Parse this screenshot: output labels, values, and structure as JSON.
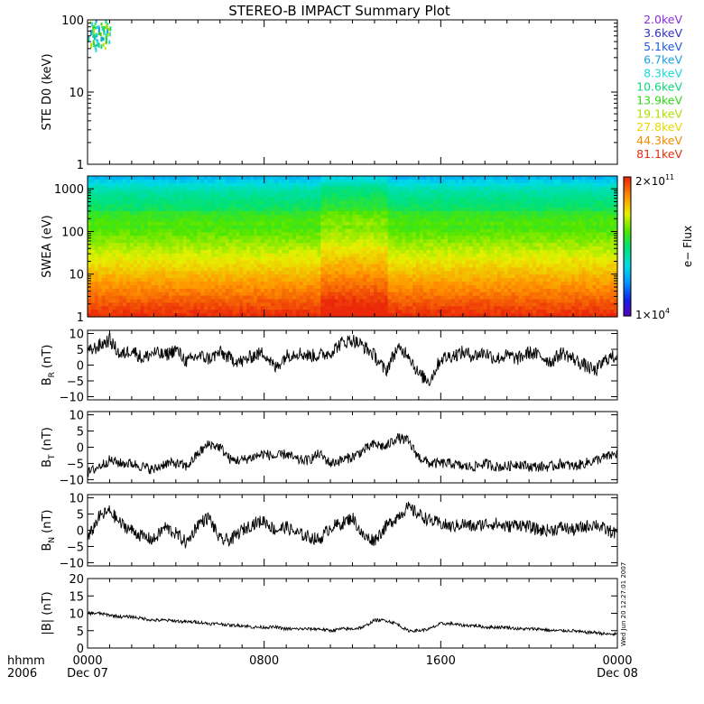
{
  "title": "STEREO-B IMPACT Summary Plot",
  "x_axis": {
    "corner_top": "hhmm",
    "corner_bottom": "2006",
    "ticks": [
      {
        "hour": 0,
        "label": "0000",
        "sub": "Dec 07"
      },
      {
        "hour": 8,
        "label": "0800",
        "sub": ""
      },
      {
        "hour": 16,
        "label": "1600",
        "sub": ""
      },
      {
        "hour": 24,
        "label": "0000",
        "sub": "Dec 08"
      }
    ],
    "range_hours": [
      0,
      24
    ]
  },
  "timestamp": "Wed Jun 20 12:27:01 2007",
  "colorbar": {
    "label": "e− Flux",
    "max_label": "2×10",
    "max_exp": "11",
    "min_label": "1×10",
    "min_exp": "4"
  },
  "energy_legend": [
    {
      "label": "2.0keV",
      "color": "#8a2be2"
    },
    {
      "label": "3.6keV",
      "color": "#3030c0"
    },
    {
      "label": "5.1keV",
      "color": "#1e5be0"
    },
    {
      "label": "6.7keV",
      "color": "#1aa0e8"
    },
    {
      "label": "8.3keV",
      "color": "#18d8d8"
    },
    {
      "label": "10.6keV",
      "color": "#10d878"
    },
    {
      "label": "13.9keV",
      "color": "#30d818"
    },
    {
      "label": "19.1keV",
      "color": "#b0e000"
    },
    {
      "label": "27.8keV",
      "color": "#e8d800"
    },
    {
      "label": "44.3keV",
      "color": "#f08c00"
    },
    {
      "label": "81.1keV",
      "color": "#e03010"
    }
  ],
  "chart_data": [
    {
      "type": "line",
      "panel": "ste",
      "ylabel": "STE D0 (keV)",
      "yscale": "log",
      "ylim": [
        1,
        100
      ],
      "yticks": [
        {
          "v": 1,
          "label": "1"
        },
        {
          "v": 10,
          "label": "10"
        },
        {
          "v": 100,
          "label": "100"
        }
      ],
      "note": "",
      "data_window_hours": [
        0,
        1.0
      ]
    },
    {
      "type": "heatmap",
      "panel": "swea",
      "ylabel": "SWEA (eV)",
      "yscale": "log",
      "ylim": [
        1,
        2000
      ],
      "yticks": [
        {
          "v": 1,
          "label": "1"
        },
        {
          "v": 10,
          "label": "10"
        },
        {
          "v": 100,
          "label": "100"
        },
        {
          "v": 1000,
          "label": "1000"
        }
      ],
      "zlim": [
        10000,
        200000000000
      ]
    },
    {
      "type": "line",
      "panel": "br",
      "ylabel": "B",
      "ylabel_sub": "R",
      "ylabel_unit": "(nT)",
      "ylim": [
        -11,
        11
      ],
      "yticks": [
        {
          "v": -10,
          "label": "−10"
        },
        {
          "v": -5,
          "label": "−5"
        },
        {
          "v": 0,
          "label": "0"
        },
        {
          "v": 5,
          "label": "5"
        },
        {
          "v": 10,
          "label": "10"
        }
      ],
      "x": [
        0,
        0.5,
        1,
        1.5,
        2,
        2.5,
        3,
        3.5,
        4,
        4.5,
        5,
        5.5,
        6,
        6.5,
        7,
        7.5,
        8,
        8.5,
        9,
        9.5,
        10,
        10.5,
        11,
        11.5,
        12,
        12.5,
        13,
        13.5,
        14,
        14.5,
        15,
        15.5,
        16,
        16.5,
        17,
        17.5,
        18,
        18.5,
        19,
        19.5,
        20,
        20.5,
        21,
        21.5,
        22,
        22.5,
        23,
        23.5,
        24
      ],
      "y": [
        4,
        6,
        8,
        3,
        5,
        2,
        4,
        3,
        5,
        1,
        3,
        2,
        4,
        2,
        1,
        3,
        4,
        -1,
        3,
        4,
        3,
        3,
        4,
        7,
        8,
        6,
        3,
        -2,
        5,
        4,
        -3,
        -5,
        2,
        3,
        4,
        3,
        4,
        2,
        3,
        2,
        4,
        3,
        1,
        4,
        2,
        0,
        -2,
        2,
        3
      ],
      "noise": 2.2
    },
    {
      "type": "line",
      "panel": "bt",
      "ylabel": "B",
      "ylabel_sub": "T",
      "ylabel_unit": "(nT)",
      "ylim": [
        -11,
        11
      ],
      "yticks": [
        {
          "v": -10,
          "label": "−10"
        },
        {
          "v": -5,
          "label": "−5"
        },
        {
          "v": 0,
          "label": "0"
        },
        {
          "v": 5,
          "label": "5"
        },
        {
          "v": 10,
          "label": "10"
        }
      ],
      "x": [
        0,
        0.5,
        1,
        1.5,
        2,
        2.5,
        3,
        3.5,
        4,
        4.5,
        5,
        5.5,
        6,
        6.5,
        7,
        7.5,
        8,
        8.5,
        9,
        9.5,
        10,
        10.5,
        11,
        11.5,
        12,
        12.5,
        13,
        13.5,
        14,
        14.5,
        15,
        15.5,
        16,
        16.5,
        17,
        17.5,
        18,
        18.5,
        19,
        19.5,
        20,
        20.5,
        21,
        21.5,
        22,
        22.5,
        23,
        23.5,
        24
      ],
      "y": [
        -8,
        -6,
        -4,
        -5,
        -5,
        -6,
        -7,
        -5,
        -5,
        -6,
        -2,
        1,
        0,
        -4,
        -4,
        -3,
        -2,
        -3,
        -2,
        -4,
        -4,
        -2,
        -5,
        -4,
        -3,
        -1,
        1,
        0,
        3,
        2,
        -3,
        -5,
        -5,
        -5,
        -6,
        -6,
        -5,
        -6,
        -6,
        -5,
        -6,
        -6,
        -6,
        -5,
        -6,
        -5,
        -4,
        -3,
        -2
      ],
      "noise": 1.6
    },
    {
      "type": "line",
      "panel": "bn",
      "ylabel": "B",
      "ylabel_sub": "N",
      "ylabel_unit": "(nT)",
      "ylim": [
        -11,
        11
      ],
      "yticks": [
        {
          "v": -10,
          "label": "−10"
        },
        {
          "v": -5,
          "label": "−5"
        },
        {
          "v": 0,
          "label": "0"
        },
        {
          "v": 5,
          "label": "5"
        },
        {
          "v": 10,
          "label": "10"
        }
      ],
      "x": [
        0,
        0.5,
        1,
        1.5,
        2,
        2.5,
        3,
        3.5,
        4,
        4.5,
        5,
        5.5,
        6,
        6.5,
        7,
        7.5,
        8,
        8.5,
        9,
        9.5,
        10,
        10.5,
        11,
        11.5,
        12,
        12.5,
        13,
        13.5,
        14,
        14.5,
        15,
        15.5,
        16,
        16.5,
        17,
        17.5,
        18,
        18.5,
        19,
        19.5,
        20,
        20.5,
        21,
        21.5,
        22,
        22.5,
        23,
        23.5,
        24
      ],
      "y": [
        -3,
        4,
        6,
        2,
        0,
        -2,
        -3,
        1,
        -1,
        -4,
        2,
        4,
        -3,
        -3,
        0,
        2,
        3,
        0,
        1,
        -1,
        -2,
        -3,
        1,
        2,
        4,
        -2,
        -3,
        1,
        4,
        7,
        5,
        3,
        2,
        1,
        2,
        1,
        2,
        2,
        1,
        2,
        1,
        0,
        0,
        1,
        0,
        1,
        2,
        0,
        -1
      ],
      "noise": 2.0
    },
    {
      "type": "line",
      "panel": "bmag",
      "ylabel": "|B| (nT)",
      "ylim": [
        0,
        20
      ],
      "yticks": [
        {
          "v": 0,
          "label": "0"
        },
        {
          "v": 5,
          "label": "5"
        },
        {
          "v": 10,
          "label": "10"
        },
        {
          "v": 15,
          "label": "15"
        },
        {
          "v": 20,
          "label": "20"
        }
      ],
      "x": [
        0,
        0.5,
        1,
        1.5,
        2,
        2.5,
        3,
        3.5,
        4,
        4.5,
        5,
        5.5,
        6,
        6.5,
        7,
        7.5,
        8,
        8.5,
        9,
        9.5,
        10,
        10.5,
        11,
        11.5,
        12,
        12.5,
        13,
        13.5,
        14,
        14.5,
        15,
        15.5,
        16,
        16.5,
        17,
        17.5,
        18,
        18.5,
        19,
        19.5,
        20,
        20.5,
        21,
        21.5,
        22,
        22.5,
        23,
        23.5,
        24
      ],
      "y": [
        10,
        10,
        9.5,
        9,
        9,
        8.5,
        8,
        8,
        7.8,
        7.5,
        7.5,
        7,
        7,
        6.5,
        6.5,
        6,
        6,
        6,
        5.5,
        5.5,
        5.5,
        5.5,
        5,
        5.5,
        5.5,
        6,
        8,
        8,
        7,
        5,
        5,
        5.5,
        7,
        7,
        6.5,
        6.5,
        6,
        6,
        6,
        5.5,
        5.5,
        5.5,
        5,
        5,
        5,
        4.5,
        4.5,
        4,
        4
      ],
      "noise": 0.45
    }
  ]
}
